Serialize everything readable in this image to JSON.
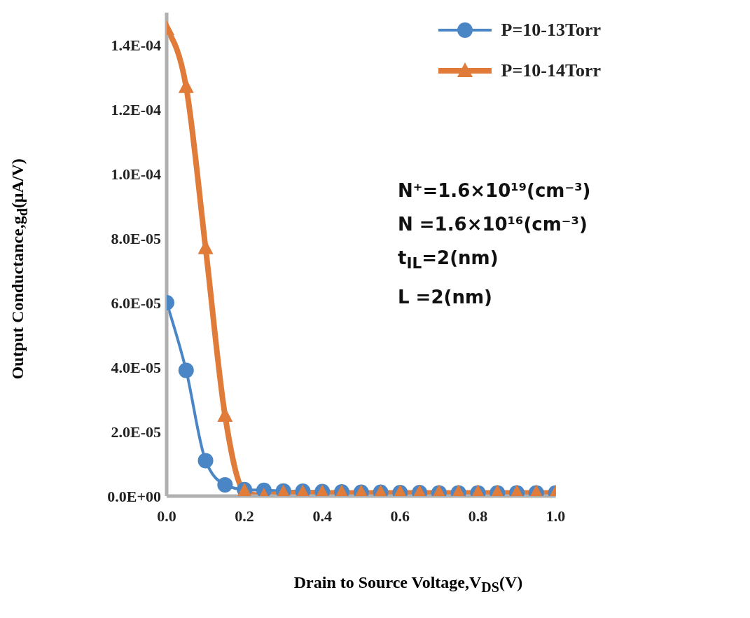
{
  "chart_data": {
    "type": "line",
    "xlabel": "Drain to Source Voltage,V$_{DS}$(V)",
    "ylabel": "Output Conductance,g$_{d}$(μA/V)",
    "x": [
      0,
      0.05,
      0.1,
      0.15,
      0.2,
      0.25,
      0.3,
      0.35,
      0.4,
      0.45,
      0.5,
      0.55,
      0.6,
      0.65,
      0.7,
      0.75,
      0.8,
      0.85,
      0.9,
      0.95,
      1.0
    ],
    "series": [
      {
        "name": "P=10-13Torr",
        "color": "#4a86c5",
        "marker": "circle",
        "values": [
          6e-05,
          3.9e-05,
          1.1e-05,
          3.5e-06,
          2e-06,
          1.8e-06,
          1.6e-06,
          1.5e-06,
          1.4e-06,
          1.3e-06,
          1.2e-06,
          1.2e-06,
          1.1e-06,
          1.1e-06,
          1e-06,
          1e-06,
          1e-06,
          1e-06,
          1e-06,
          1e-06,
          1e-06
        ]
      },
      {
        "name": "P=10-14Torr",
        "color": "#e07b39",
        "marker": "triangle",
        "values": [
          0.000145,
          0.000127,
          7.7e-05,
          2.5e-05,
          1.5e-06,
          0,
          1e-06,
          1e-06,
          1e-06,
          1e-06,
          1e-06,
          1e-06,
          1e-06,
          1e-06,
          1e-06,
          1e-06,
          1e-06,
          1e-06,
          1e-06,
          1e-06,
          1e-06
        ]
      }
    ],
    "xlim": [
      0,
      1
    ],
    "xticks": [
      {
        "value": 0,
        "label": "0.0"
      },
      0.2,
      0.4,
      0.6,
      0.8,
      {
        "value": 1,
        "label": "1.0"
      }
    ],
    "ylim": [
      0,
      0.00015
    ],
    "yticks": [
      {
        "value": 0,
        "label": "0.0E+00"
      },
      {
        "value": 2e-05,
        "label": "2.0E-05"
      },
      {
        "value": 4e-05,
        "label": "4.0E-05"
      },
      {
        "value": 6e-05,
        "label": "6.0E-05"
      },
      {
        "value": 8e-05,
        "label": "8.0E-05"
      },
      {
        "value": 0.0001,
        "label": "1.0E-04"
      },
      {
        "value": 0.00012,
        "label": "1.2E-04"
      },
      {
        "value": 0.00014,
        "label": "1.4E-04"
      }
    ],
    "annotations": [
      "N⁺=1.6×10¹⁹(cm⁻³)",
      "N =1.6×10¹⁶(cm⁻³)",
      "t$_{IL}$=2(nm)",
      "L  =2(nm)"
    ],
    "legend": "top right",
    "grid": false,
    "line_style": "solid"
  }
}
